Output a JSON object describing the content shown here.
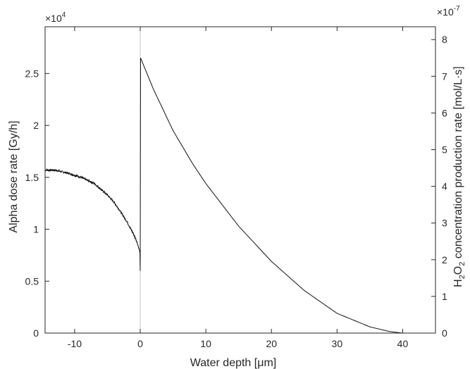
{
  "chart_data": {
    "type": "line",
    "xlabel": "Water depth [μm]",
    "ylabel_left": "Alpha dose rate [Gy/h]",
    "ylabel_right": {
      "prefix": "H",
      "sub1": "2",
      "mid": "O",
      "sub2": "2",
      "suffix": " concentration production rate [mol/L·s]"
    },
    "left_multiplier": {
      "base": "×10",
      "exp": "4"
    },
    "right_multiplier": {
      "base": "×10",
      "exp": "-7"
    },
    "xlim": [
      -14.5,
      45
    ],
    "ylim_left": [
      0,
      2.95
    ],
    "ylim_right": [
      0,
      8.35
    ],
    "x_ticks": [
      -10,
      0,
      10,
      20,
      30,
      40
    ],
    "x_tick_labels": [
      "-10",
      "0",
      "10",
      "20",
      "30",
      "40"
    ],
    "y_left_ticks": [
      0,
      0.5,
      1,
      1.5,
      2,
      2.5
    ],
    "y_left_tick_labels": [
      "0",
      "0.5",
      "1",
      "1.5",
      "2",
      "2.5"
    ],
    "y_right_ticks": [
      0,
      1,
      2,
      3,
      4,
      5,
      6,
      7,
      8
    ],
    "y_right_tick_labels": [
      "0",
      "1",
      "2",
      "3",
      "4",
      "5",
      "6",
      "7",
      "8"
    ],
    "vertical_line_x": 0,
    "grid": false,
    "series": [
      {
        "axis": "left",
        "style": "noisy",
        "x": [
          -14.5,
          -13,
          -11,
          -9,
          -7,
          -5,
          -4,
          -3,
          -2,
          -1.5,
          -1,
          -0.5,
          -0.05,
          0
        ],
        "y": [
          1.57,
          1.57,
          1.54,
          1.5,
          1.44,
          1.33,
          1.26,
          1.17,
          1.07,
          1.01,
          0.95,
          0.88,
          0.78,
          0.6
        ]
      },
      {
        "axis": "left",
        "style": "smooth",
        "x": [
          0,
          0.05,
          2,
          5,
          8,
          10,
          15,
          20,
          25,
          30,
          35,
          38,
          40
        ],
        "y": [
          0.6,
          2.65,
          2.35,
          1.95,
          1.63,
          1.44,
          1.03,
          0.69,
          0.41,
          0.19,
          0.06,
          0.015,
          0
        ]
      }
    ]
  }
}
